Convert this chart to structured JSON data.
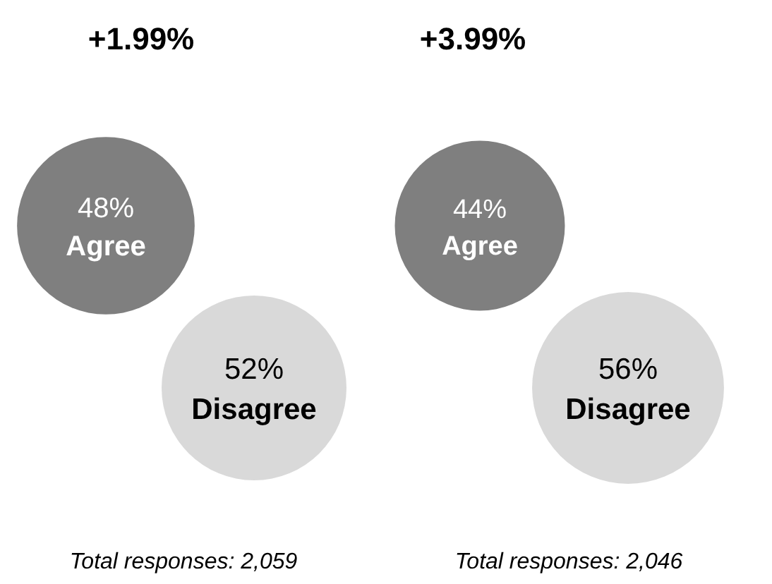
{
  "chart_data": [
    {
      "type": "other",
      "title": "+1.99%",
      "categories": [
        "Agree",
        "Disagree"
      ],
      "values": [
        48,
        52
      ],
      "value_labels": [
        "48%",
        "52%"
      ],
      "colors": [
        "#7f7f7f",
        "#d9d9d9"
      ],
      "annotations": [
        "Total responses: 2,059"
      ]
    },
    {
      "type": "other",
      "title": "+3.99%",
      "categories": [
        "Agree",
        "Disagree"
      ],
      "values": [
        44,
        56
      ],
      "value_labels": [
        "44%",
        "56%"
      ],
      "colors": [
        "#7f7f7f",
        "#d9d9d9"
      ],
      "annotations": [
        "Total responses: 2,046"
      ]
    }
  ]
}
